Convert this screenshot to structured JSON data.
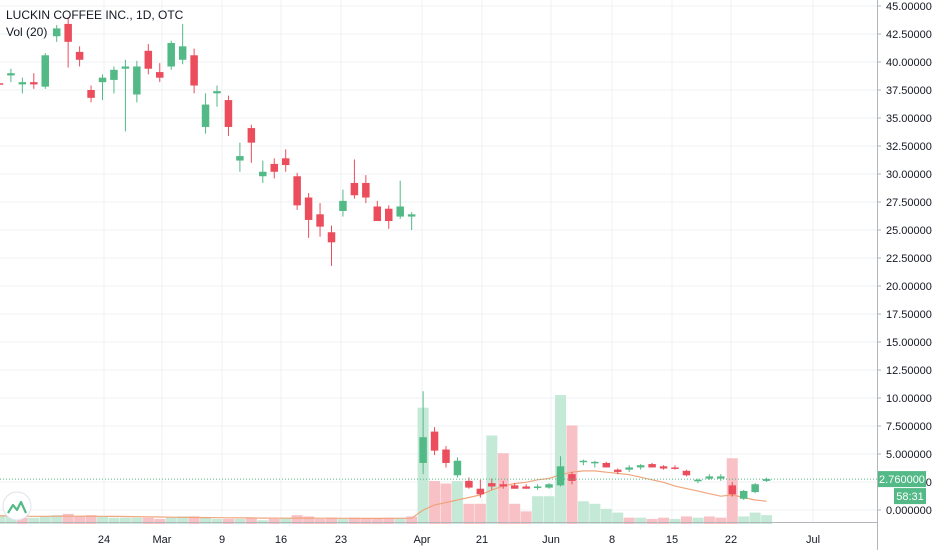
{
  "legend": {
    "symbol": "LUCKIN COFFEE INC., 1D, OTC",
    "volume_study": "Vol (20)"
  },
  "colors": {
    "up": "#53b987",
    "down": "#eb4d5c",
    "up_volume": "#c5e9d7",
    "down_volume": "#f7c1c6",
    "volume_ma": "#f0a57c",
    "last_price_line": "#53b987",
    "grid": "#eef0f3",
    "axis_text": "#131722"
  },
  "watermark_icon": "tradingview-logo-icon",
  "price_axis": {
    "ticks": [
      "45.000000",
      "42.500000",
      "40.000000",
      "37.500000",
      "35.000000",
      "32.500000",
      "30.000000",
      "27.500000",
      "25.000000",
      "22.500000",
      "20.000000",
      "17.500000",
      "15.000000",
      "12.500000",
      "10.000000",
      "7.500000",
      "5.000000",
      "2.500000",
      "0.000000"
    ],
    "last_price_label": "2.760000",
    "countdown_label": "58:31"
  },
  "time_axis": {
    "labels": [
      "0",
      "24",
      "Mar",
      "9",
      "16",
      "23",
      "Apr",
      "21",
      "Jun",
      "8",
      "15",
      "22",
      "Jul"
    ]
  },
  "chart_data": {
    "type": "candlestick",
    "title": "LUCKIN COFFEE INC., 1D, OTC",
    "ylim": [
      -1,
      45
    ],
    "last_price": 2.76,
    "candles": [
      {
        "o": 34.5,
        "h": 38.0,
        "l": 33.8,
        "c": 37.2
      },
      {
        "o": 38.1,
        "h": 38.8,
        "l": 37.2,
        "c": 38.0
      },
      {
        "o": 38.8,
        "h": 39.4,
        "l": 38.2,
        "c": 39.0
      },
      {
        "o": 38.0,
        "h": 38.6,
        "l": 37.2,
        "c": 38.2
      },
      {
        "o": 38.2,
        "h": 39.0,
        "l": 37.6,
        "c": 38.0
      },
      {
        "o": 37.8,
        "h": 40.8,
        "l": 37.6,
        "c": 40.6
      },
      {
        "o": 42.3,
        "h": 43.3,
        "l": 41.8,
        "c": 43.0
      },
      {
        "o": 43.4,
        "h": 44.0,
        "l": 39.5,
        "c": 41.8
      },
      {
        "o": 40.9,
        "h": 41.4,
        "l": 39.6,
        "c": 40.2
      },
      {
        "o": 37.5,
        "h": 37.9,
        "l": 36.4,
        "c": 36.8
      },
      {
        "o": 38.2,
        "h": 38.9,
        "l": 36.6,
        "c": 38.6
      },
      {
        "o": 38.4,
        "h": 39.6,
        "l": 37.2,
        "c": 39.3
      },
      {
        "o": 39.4,
        "h": 40.2,
        "l": 33.8,
        "c": 39.6
      },
      {
        "o": 37.1,
        "h": 40.1,
        "l": 36.4,
        "c": 39.6
      },
      {
        "o": 41.0,
        "h": 41.6,
        "l": 38.9,
        "c": 39.4
      },
      {
        "o": 39.1,
        "h": 39.9,
        "l": 38.2,
        "c": 38.6
      },
      {
        "o": 39.6,
        "h": 41.9,
        "l": 39.3,
        "c": 41.7
      },
      {
        "o": 40.2,
        "h": 43.4,
        "l": 39.8,
        "c": 41.4
      },
      {
        "o": 40.6,
        "h": 41.2,
        "l": 37.2,
        "c": 37.9
      },
      {
        "o": 34.2,
        "h": 37.2,
        "l": 33.6,
        "c": 36.2
      },
      {
        "o": 37.2,
        "h": 37.9,
        "l": 36.0,
        "c": 37.4
      },
      {
        "o": 36.6,
        "h": 37.0,
        "l": 33.4,
        "c": 34.2
      },
      {
        "o": 31.2,
        "h": 32.8,
        "l": 30.2,
        "c": 31.6
      },
      {
        "o": 34.1,
        "h": 34.4,
        "l": 31.0,
        "c": 32.8
      },
      {
        "o": 29.8,
        "h": 31.2,
        "l": 29.2,
        "c": 30.2
      },
      {
        "o": 30.9,
        "h": 31.4,
        "l": 29.6,
        "c": 30.2
      },
      {
        "o": 31.4,
        "h": 32.2,
        "l": 30.2,
        "c": 30.8
      },
      {
        "o": 29.8,
        "h": 30.1,
        "l": 26.8,
        "c": 27.2
      },
      {
        "o": 27.9,
        "h": 28.3,
        "l": 24.3,
        "c": 25.9
      },
      {
        "o": 26.4,
        "h": 27.4,
        "l": 24.4,
        "c": 25.3
      },
      {
        "o": 24.8,
        "h": 25.4,
        "l": 21.8,
        "c": 23.9
      },
      {
        "o": 26.7,
        "h": 28.6,
        "l": 26.2,
        "c": 27.6
      },
      {
        "o": 29.2,
        "h": 31.3,
        "l": 27.8,
        "c": 28.1
      },
      {
        "o": 29.2,
        "h": 29.9,
        "l": 27.4,
        "c": 27.9
      },
      {
        "o": 27.1,
        "h": 27.6,
        "l": 25.9,
        "c": 25.8
      },
      {
        "o": 26.9,
        "h": 27.2,
        "l": 25.1,
        "c": 25.8
      },
      {
        "o": 26.2,
        "h": 29.4,
        "l": 26.0,
        "c": 27.1
      },
      {
        "o": 26.2,
        "h": 26.6,
        "l": 25.0,
        "c": 26.4
      }
    ],
    "volume_overlay": {
      "study": "Vol (20)",
      "scale_max": 10.6,
      "bars": [
        {
          "v": 0.8,
          "up": true
        },
        {
          "v": 0.7,
          "up": true
        },
        {
          "v": 0.6,
          "up": true
        },
        {
          "v": 0.5,
          "up": false
        },
        {
          "v": 0.5,
          "up": true
        },
        {
          "v": 0.6,
          "up": true
        },
        {
          "v": 0.7,
          "up": true
        },
        {
          "v": 0.8,
          "up": false
        },
        {
          "v": 0.6,
          "up": false
        },
        {
          "v": 0.7,
          "up": false
        },
        {
          "v": 0.6,
          "up": true
        },
        {
          "v": 0.5,
          "up": true
        },
        {
          "v": 0.5,
          "up": true
        },
        {
          "v": 0.5,
          "up": true
        },
        {
          "v": 0.5,
          "up": false
        },
        {
          "v": 0.4,
          "up": false
        },
        {
          "v": 0.5,
          "up": true
        },
        {
          "v": 0.6,
          "up": true
        },
        {
          "v": 0.6,
          "up": false
        },
        {
          "v": 0.5,
          "up": true
        },
        {
          "v": 0.4,
          "up": true
        },
        {
          "v": 0.4,
          "up": false
        },
        {
          "v": 0.4,
          "up": true
        },
        {
          "v": 0.5,
          "up": false
        },
        {
          "v": 0.3,
          "up": true
        },
        {
          "v": 0.4,
          "up": false
        },
        {
          "v": 0.5,
          "up": true
        },
        {
          "v": 0.7,
          "up": false
        },
        {
          "v": 0.6,
          "up": false
        },
        {
          "v": 0.4,
          "up": false
        },
        {
          "v": 0.5,
          "up": false
        },
        {
          "v": 0.4,
          "up": true
        },
        {
          "v": 0.5,
          "up": false
        },
        {
          "v": 0.4,
          "up": false
        },
        {
          "v": 0.4,
          "up": false
        },
        {
          "v": 0.5,
          "up": false
        },
        {
          "v": 0.5,
          "up": true
        },
        {
          "v": 0.6,
          "up": false
        },
        {
          "v": 9.2,
          "up": true
        },
        {
          "v": 3.4,
          "up": false
        },
        {
          "v": 3.2,
          "up": false
        },
        {
          "v": 3.4,
          "up": true
        },
        {
          "v": 1.6,
          "up": false
        },
        {
          "v": 1.6,
          "up": false
        },
        {
          "v": 7.0,
          "up": true
        },
        {
          "v": 5.6,
          "up": false
        },
        {
          "v": 1.6,
          "up": false
        },
        {
          "v": 1.0,
          "up": false
        },
        {
          "v": 2.2,
          "up": true
        },
        {
          "v": 2.2,
          "up": true
        },
        {
          "v": 10.2,
          "up": true
        },
        {
          "v": 7.8,
          "up": false
        },
        {
          "v": 1.8,
          "up": true
        },
        {
          "v": 1.6,
          "up": true
        },
        {
          "v": 1.2,
          "up": true
        },
        {
          "v": 0.9,
          "up": true
        },
        {
          "v": 0.5,
          "up": false
        },
        {
          "v": 0.5,
          "up": true
        },
        {
          "v": 0.4,
          "up": false
        },
        {
          "v": 0.5,
          "up": false
        },
        {
          "v": 0.4,
          "up": true
        },
        {
          "v": 0.6,
          "up": false
        },
        {
          "v": 0.5,
          "up": true
        },
        {
          "v": 0.6,
          "up": false
        },
        {
          "v": 0.5,
          "up": false
        },
        {
          "v": 5.2,
          "up": false
        },
        {
          "v": 0.6,
          "up": true
        },
        {
          "v": 0.9,
          "up": true
        },
        {
          "v": 0.7,
          "up": true
        }
      ],
      "ma": [
        0.65,
        0.65,
        0.63,
        0.62,
        0.61,
        0.61,
        0.62,
        0.62,
        0.62,
        0.62,
        0.61,
        0.6,
        0.59,
        0.58,
        0.57,
        0.55,
        0.54,
        0.53,
        0.52,
        0.51,
        0.5,
        0.49,
        0.48,
        0.48,
        0.47,
        0.47,
        0.46,
        0.47,
        0.47,
        0.46,
        0.46,
        0.45,
        0.45,
        0.44,
        0.44,
        0.45,
        0.45,
        0.46,
        1.1,
        1.5,
        1.7,
        1.9,
        2.1,
        2.3,
        2.7,
        3.0,
        3.2,
        3.3,
        3.5,
        3.6,
        3.9,
        4.1,
        4.2,
        4.2,
        4.1,
        4.0,
        3.9,
        3.7,
        3.5,
        3.3,
        3.0,
        2.8,
        2.6,
        2.4,
        2.2,
        2.3,
        2.1,
        1.9,
        1.8
      ]
    },
    "late_candles": [
      {
        "i": 38,
        "o": 4.2,
        "h": 10.6,
        "l": 3.2,
        "c": 6.5
      },
      {
        "i": 39,
        "o": 7.0,
        "h": 7.4,
        "l": 4.9,
        "c": 5.3
      },
      {
        "i": 40,
        "o": 5.4,
        "h": 5.7,
        "l": 3.8,
        "c": 4.2
      },
      {
        "i": 41,
        "o": 3.1,
        "h": 4.7,
        "l": 2.9,
        "c": 4.4
      },
      {
        "i": 42,
        "o": 2.6,
        "h": 2.9,
        "l": 1.9,
        "c": 2.0
      },
      {
        "i": 43,
        "o": 1.9,
        "h": 2.7,
        "l": 1.1,
        "c": 1.4
      },
      {
        "i": 44,
        "o": 2.4,
        "h": 2.8,
        "l": 1.8,
        "c": 2.1
      },
      {
        "i": 45,
        "o": 2.3,
        "h": 2.6,
        "l": 1.9,
        "c": 2.1
      },
      {
        "i": 46,
        "o": 2.2,
        "h": 2.4,
        "l": 1.9,
        "c": 1.9
      },
      {
        "i": 47,
        "o": 2.1,
        "h": 2.3,
        "l": 1.9,
        "c": 1.9
      },
      {
        "i": 48,
        "o": 2.0,
        "h": 2.3,
        "l": 1.8,
        "c": 2.1
      },
      {
        "i": 49,
        "o": 2.0,
        "h": 2.4,
        "l": 1.9,
        "c": 2.3
      },
      {
        "i": 50,
        "o": 2.2,
        "h": 4.8,
        "l": 2.1,
        "c": 3.9
      },
      {
        "i": 51,
        "o": 3.2,
        "h": 3.4,
        "l": 2.3,
        "c": 2.6
      },
      {
        "i": 52,
        "o": 4.3,
        "h": 4.5,
        "l": 4.0,
        "c": 4.4
      },
      {
        "i": 53,
        "o": 4.2,
        "h": 4.4,
        "l": 3.8,
        "c": 4.3
      },
      {
        "i": 54,
        "o": 4.2,
        "h": 4.3,
        "l": 3.8,
        "c": 3.8
      },
      {
        "i": 55,
        "o": 3.6,
        "h": 3.7,
        "l": 3.2,
        "c": 3.4
      },
      {
        "i": 56,
        "o": 3.6,
        "h": 4.0,
        "l": 3.4,
        "c": 3.8
      },
      {
        "i": 57,
        "o": 3.8,
        "h": 4.1,
        "l": 3.6,
        "c": 4.0
      },
      {
        "i": 58,
        "o": 4.1,
        "h": 4.2,
        "l": 3.8,
        "c": 3.8
      },
      {
        "i": 59,
        "o": 3.9,
        "h": 4.0,
        "l": 3.6,
        "c": 3.7
      },
      {
        "i": 60,
        "o": 3.8,
        "h": 4.0,
        "l": 3.6,
        "c": 3.7
      },
      {
        "i": 61,
        "o": 3.5,
        "h": 3.6,
        "l": 3.0,
        "c": 3.1
      },
      {
        "i": 62,
        "o": 2.6,
        "h": 2.8,
        "l": 2.4,
        "c": 2.7
      },
      {
        "i": 63,
        "o": 2.8,
        "h": 3.2,
        "l": 2.7,
        "c": 3.0
      },
      {
        "i": 64,
        "o": 2.8,
        "h": 3.2,
        "l": 2.6,
        "c": 3.0
      },
      {
        "i": 65,
        "o": 2.2,
        "h": 2.5,
        "l": 1.2,
        "c": 1.4
      },
      {
        "i": 66,
        "o": 1.0,
        "h": 1.8,
        "l": 0.9,
        "c": 1.7
      },
      {
        "i": 67,
        "o": 1.6,
        "h": 2.4,
        "l": 1.5,
        "c": 2.3
      },
      {
        "i": 68,
        "o": 2.6,
        "h": 2.9,
        "l": 2.5,
        "c": 2.76
      }
    ]
  }
}
